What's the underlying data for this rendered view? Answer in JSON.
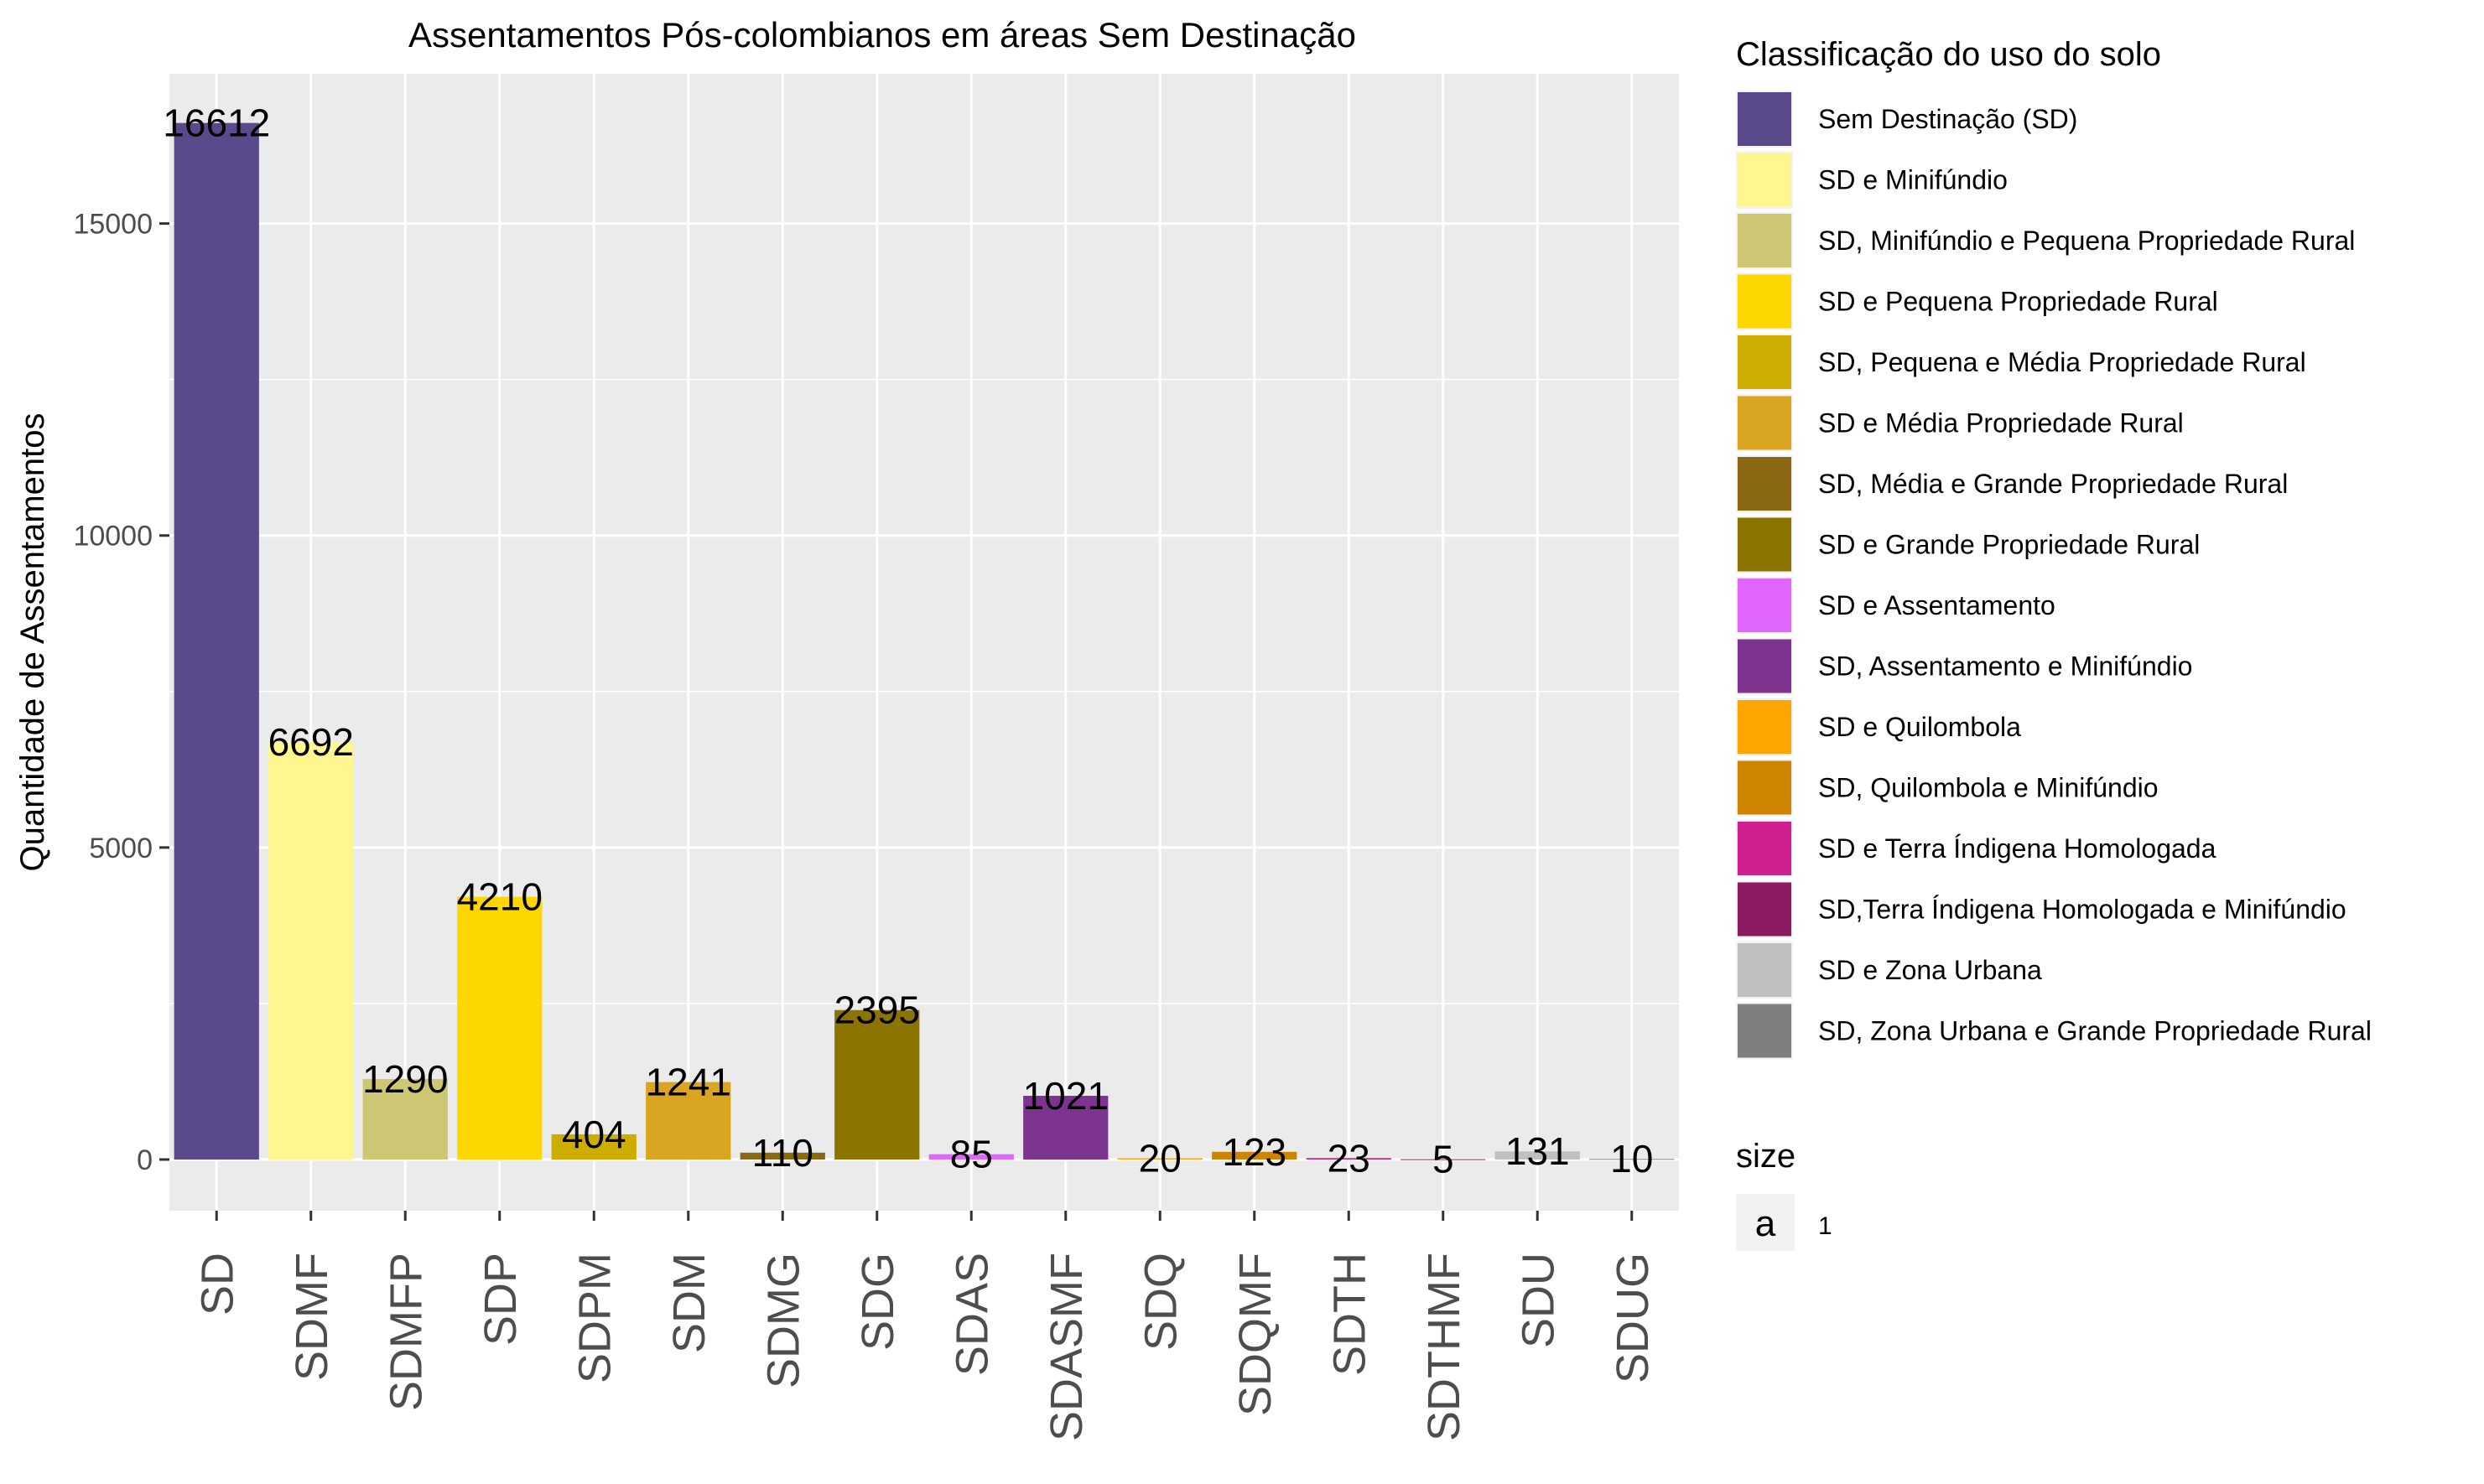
{
  "chart_data": {
    "type": "bar",
    "title": "Assentamentos Pós-colombianos em áreas Sem Destinação",
    "xlabel": "",
    "ylabel": "Quantidade de Assentamentos",
    "ylim": [
      -820,
      17400
    ],
    "y_ticks": [
      0,
      5000,
      10000,
      15000
    ],
    "grid": true,
    "legend_position": "right",
    "categories": [
      "SD",
      "SDMF",
      "SDMFP",
      "SDP",
      "SDPM",
      "SDM",
      "SDMG",
      "SDG",
      "SDAS",
      "SDASMF",
      "SDQ",
      "SDQMF",
      "SDTH",
      "SDTHMF",
      "SDU",
      "SDUG"
    ],
    "values": [
      16612,
      6692,
      1290,
      4210,
      404,
      1241,
      110,
      2395,
      85,
      1021,
      20,
      123,
      23,
      5,
      131,
      10
    ],
    "data_labels": [
      "16612",
      "6692",
      "1290",
      "4210",
      "404",
      "1241",
      "110",
      "2395",
      "85",
      "1021",
      "20",
      "123",
      "23",
      "5",
      "131",
      "10"
    ],
    "colors": [
      "#5B4A8B",
      "#FFF68F",
      "#CDC673",
      "#FFD700",
      "#CDAD00",
      "#DAA520",
      "#8B6914",
      "#8B7500",
      "#E066FF",
      "#7D348F",
      "#FFA500",
      "#CD8500",
      "#D02090",
      "#8B1C62",
      "#C0C0C0",
      "#7F7F7F"
    ],
    "legend": {
      "title": "Classificação do uso do solo",
      "entries": [
        "Sem Destinação (SD)",
        "SD e Minifúndio",
        "SD, Minifúndio e Pequena Propriedade Rural",
        "SD e Pequena Propriedade Rural",
        "SD, Pequena e Média Propriedade Rural",
        "SD e Média Propriedade Rural",
        "SD, Média e Grande Propriedade Rural",
        "SD e Grande Propriedade Rural",
        "SD e Assentamento",
        "SD, Assentamento e Minifúndio",
        "SD e Quilombola",
        "SD, Quilombola e Minifúndio",
        "SD e Terra Índigena Homologada",
        "SD,Terra Índigena Homologada e Minifúndio",
        "SD e Zona Urbana",
        "SD, Zona Urbana e Grande Propriedade Rural"
      ]
    },
    "size_legend": {
      "title": "size",
      "key": "a",
      "label": "1"
    }
  }
}
